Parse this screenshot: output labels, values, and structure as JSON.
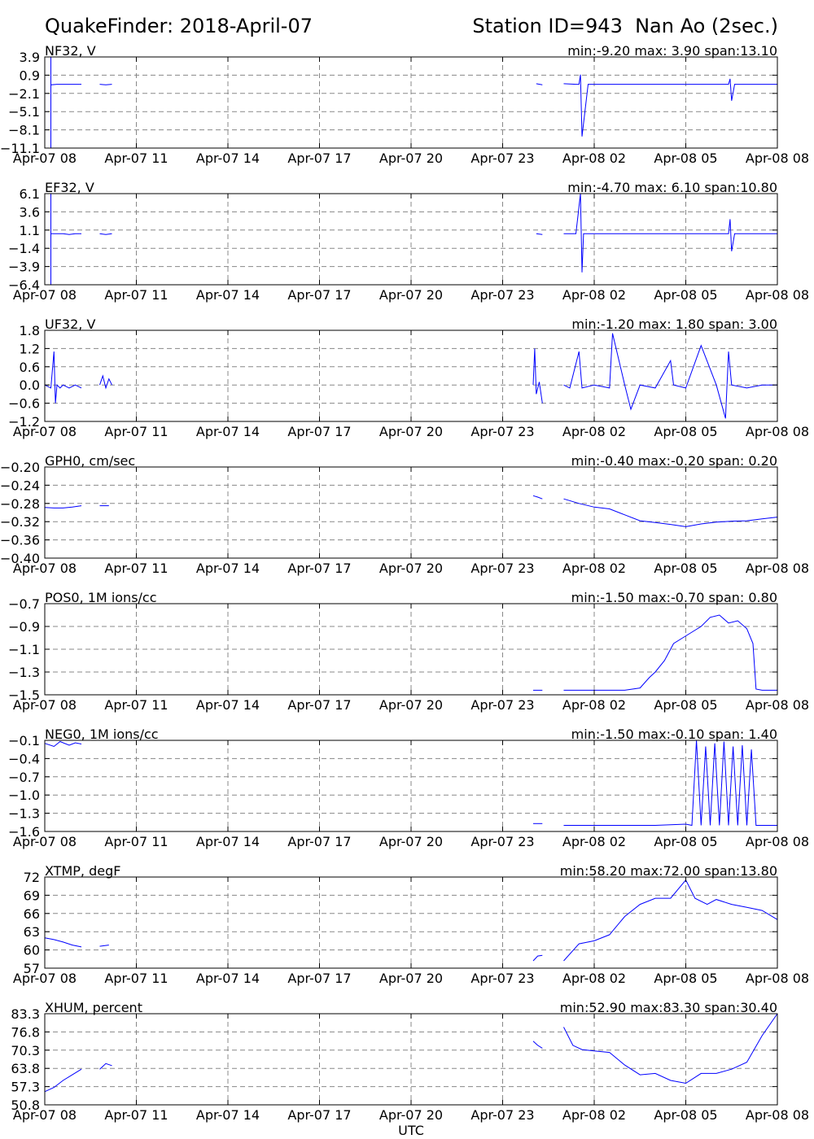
{
  "header": {
    "title_left": "QuakeFinder: 2018-April-07",
    "title_right": "Station ID=943  Nan Ao (2sec.)"
  },
  "xlabel": "UTC",
  "x_ticks": [
    "Apr-07 08",
    "Apr-07 11",
    "Apr-07 14",
    "Apr-07 17",
    "Apr-07 20",
    "Apr-07 23",
    "Apr-08 02",
    "Apr-08 05",
    "Apr-08 08"
  ],
  "chart_data": [
    {
      "type": "line",
      "label": "NF32, V",
      "stats": "min:-9.20 max: 3.90 span:13.10",
      "ylim": [
        -11.1,
        3.9
      ],
      "yticks": [
        "3.9",
        "0.9",
        "−2.1",
        "−5.1",
        "−8.1",
        "−11.1"
      ],
      "series": [
        {
          "x": [
            8.2,
            8.2,
            8.4,
            8.6,
            8.8,
            9.0,
            9.2
          ],
          "y": [
            -0.6,
            -0.7,
            -0.6,
            -0.6,
            -0.6,
            -0.6,
            -0.6
          ]
        },
        {
          "x": [
            8.2,
            8.2,
            8.2,
            8.2
          ],
          "y": [
            3.9,
            -11.1,
            3.9,
            -11.1
          ]
        },
        {
          "x": [
            9.8,
            10.0,
            10.2
          ],
          "y": [
            -0.6,
            -0.7,
            -0.6
          ]
        },
        {
          "x": [
            24.1,
            24.3
          ],
          "y": [
            -0.5,
            -0.7
          ]
        },
        {
          "x": [
            25.0,
            25.4,
            25.5,
            25.55,
            25.6,
            25.8,
            27.0,
            28.0,
            29.0,
            30.0,
            30.4,
            30.45,
            30.5,
            30.6,
            31.0,
            32.0
          ],
          "y": [
            -0.5,
            -0.6,
            -0.6,
            1.0,
            -9.2,
            -0.6,
            -0.6,
            -0.6,
            -0.6,
            -0.6,
            -0.6,
            0.3,
            -3.3,
            -0.6,
            -0.6,
            -0.6
          ]
        }
      ]
    },
    {
      "type": "line",
      "label": "EF32, V",
      "stats": "min:-4.70 max: 6.10 span:10.80",
      "ylim": [
        -6.4,
        6.1
      ],
      "yticks": [
        "6.1",
        "3.6",
        "1.1",
        "−1.4",
        "−3.9",
        "−6.4"
      ],
      "series": [
        {
          "x": [
            8.2,
            8.4,
            8.6,
            8.8,
            9.0,
            9.2
          ],
          "y": [
            0.6,
            0.6,
            0.6,
            0.5,
            0.6,
            0.6
          ]
        },
        {
          "x": [
            8.2,
            8.2,
            8.2,
            8.2
          ],
          "y": [
            6.1,
            -6.4,
            6.1,
            -6.4
          ]
        },
        {
          "x": [
            9.8,
            10.0,
            10.2
          ],
          "y": [
            0.6,
            0.5,
            0.6
          ]
        },
        {
          "x": [
            24.1,
            24.3
          ],
          "y": [
            0.6,
            0.5
          ]
        },
        {
          "x": [
            25.0,
            25.4,
            25.55,
            25.6,
            25.65,
            25.8,
            27.0,
            29.0,
            30.4,
            30.45,
            30.5,
            30.6,
            32.0
          ],
          "y": [
            0.6,
            0.6,
            6.1,
            -4.7,
            0.6,
            0.6,
            0.6,
            0.6,
            0.6,
            2.6,
            -1.8,
            0.6,
            0.6
          ]
        }
      ]
    },
    {
      "type": "line",
      "label": "UF32, V",
      "stats": "min:-1.20 max: 1.80 span: 3.00",
      "ylim": [
        -1.2,
        1.8
      ],
      "yticks": [
        "1.8",
        "1.2",
        "0.6",
        "0.0",
        "−0.6",
        "−1.2"
      ],
      "series": [
        {
          "x": [
            8.0,
            8.2,
            8.3,
            8.35,
            8.4,
            8.5,
            8.6,
            8.8,
            9.0,
            9.2
          ],
          "y": [
            0.0,
            -0.1,
            1.1,
            -0.6,
            0.0,
            -0.1,
            0.0,
            -0.1,
            0.0,
            -0.1
          ]
        },
        {
          "x": [
            9.8,
            9.9,
            10.0,
            10.1,
            10.2
          ],
          "y": [
            0.0,
            0.3,
            -0.1,
            0.2,
            0.0
          ]
        },
        {
          "x": [
            24.0,
            24.05,
            24.1,
            24.2,
            24.3
          ],
          "y": [
            0.0,
            1.2,
            -0.3,
            0.1,
            -0.6
          ]
        },
        {
          "x": [
            25.0,
            25.2,
            25.5,
            25.6,
            26.0,
            26.5,
            26.6,
            27.0,
            27.2,
            27.5,
            28.0,
            28.5,
            28.6,
            29.0,
            29.5,
            30.0,
            30.3,
            30.4,
            30.5,
            31.0,
            31.5,
            32.0
          ],
          "y": [
            0.0,
            -0.1,
            1.1,
            -0.1,
            0.0,
            -0.1,
            1.7,
            0.0,
            -0.8,
            0.0,
            -0.1,
            0.8,
            0.0,
            -0.1,
            1.3,
            0.0,
            -1.1,
            1.1,
            0.0,
            -0.1,
            0.0,
            0.0
          ]
        }
      ]
    },
    {
      "type": "line",
      "label": "GPH0, cm/sec",
      "stats": "min:-0.40 max:-0.20 span: 0.20",
      "ylim": [
        -0.4,
        -0.2
      ],
      "yticks": [
        "−0.20",
        "−0.24",
        "−0.28",
        "−0.32",
        "−0.36",
        "−0.40"
      ],
      "series": [
        {
          "x": [
            8.0,
            8.3,
            8.6,
            8.9,
            9.2
          ],
          "y": [
            -0.289,
            -0.29,
            -0.29,
            -0.288,
            -0.285
          ]
        },
        {
          "x": [
            9.8,
            10.1
          ],
          "y": [
            -0.285,
            -0.285
          ]
        },
        {
          "x": [
            24.0,
            24.15,
            24.3
          ],
          "y": [
            -0.263,
            -0.266,
            -0.27
          ]
        },
        {
          "x": [
            25.0,
            25.5,
            26.0,
            26.5,
            27.0,
            27.5,
            28.0,
            28.5,
            29.0,
            29.5,
            30.0,
            30.5,
            31.0,
            31.5,
            32.0
          ],
          "y": [
            -0.27,
            -0.28,
            -0.288,
            -0.292,
            -0.305,
            -0.318,
            -0.322,
            -0.326,
            -0.331,
            -0.325,
            -0.321,
            -0.319,
            -0.318,
            -0.314,
            -0.31
          ]
        }
      ]
    },
    {
      "type": "line",
      "label": "POS0, 1M ions/cc",
      "stats": "min:-1.50 max:-0.70 span: 0.80",
      "ylim": [
        -1.5,
        -0.7
      ],
      "yticks": [
        "−0.7",
        "−0.9",
        "−1.1",
        "−1.3",
        "−1.5"
      ],
      "series": [
        {
          "x": [
            24.0,
            24.3
          ],
          "y": [
            -1.46,
            -1.46
          ]
        },
        {
          "x": [
            25.0,
            26.0,
            27.0,
            27.5,
            27.8,
            28.0,
            28.3,
            28.6,
            28.9,
            29.2,
            29.5,
            29.8,
            30.1,
            30.4,
            30.7,
            31.0,
            31.2,
            31.3,
            31.5,
            32.0
          ],
          "y": [
            -1.46,
            -1.46,
            -1.46,
            -1.44,
            -1.35,
            -1.3,
            -1.2,
            -1.05,
            -1.0,
            -0.95,
            -0.9,
            -0.82,
            -0.8,
            -0.87,
            -0.85,
            -0.92,
            -1.05,
            -1.45,
            -1.46,
            -1.46
          ]
        }
      ]
    },
    {
      "type": "line",
      "label": "NEG0, 1M ions/cc",
      "stats": "min:-1.50 max:-0.10 span: 1.40",
      "ylim": [
        -1.6,
        -0.1
      ],
      "yticks": [
        "−0.1",
        "−0.4",
        "−0.7",
        "−1.0",
        "−1.3",
        "−1.6"
      ],
      "series": [
        {
          "x": [
            8.0,
            8.3,
            8.5,
            8.8,
            9.0,
            9.2
          ],
          "y": [
            -0.15,
            -0.2,
            -0.12,
            -0.18,
            -0.14,
            -0.16
          ]
        },
        {
          "x": [
            24.0,
            24.3
          ],
          "y": [
            -1.47,
            -1.47
          ]
        },
        {
          "x": [
            25.0,
            26.0,
            27.0,
            28.0,
            29.0,
            29.2,
            29.35,
            29.5,
            29.65,
            29.8,
            29.95,
            30.1,
            30.25,
            30.4,
            30.55,
            30.7,
            30.85,
            31.0,
            31.15,
            31.3,
            31.5,
            32.0
          ],
          "y": [
            -1.5,
            -1.5,
            -1.5,
            -1.5,
            -1.48,
            -1.5,
            -0.1,
            -1.5,
            -0.2,
            -1.5,
            -0.15,
            -1.5,
            -0.12,
            -1.5,
            -0.2,
            -1.5,
            -0.18,
            -1.5,
            -0.25,
            -1.5,
            -1.5,
            -1.5
          ]
        }
      ]
    },
    {
      "type": "line",
      "label": "XTMP, degF",
      "stats": "min:58.20 max:72.00 span:13.80",
      "ylim": [
        57,
        72
      ],
      "yticks": [
        "72",
        "69",
        "66",
        "63",
        "60",
        "57"
      ],
      "series": [
        {
          "x": [
            8.0,
            8.3,
            8.6,
            8.9,
            9.2
          ],
          "y": [
            62.0,
            61.7,
            61.3,
            60.8,
            60.5
          ]
        },
        {
          "x": [
            9.8,
            10.1
          ],
          "y": [
            60.6,
            60.8
          ]
        },
        {
          "x": [
            24.0,
            24.15,
            24.3
          ],
          "y": [
            58.2,
            59.0,
            59.1
          ]
        },
        {
          "x": [
            25.0,
            25.5,
            26.0,
            26.5,
            27.0,
            27.5,
            28.0,
            28.5,
            29.0,
            29.3,
            29.7,
            30.0,
            30.5,
            31.0,
            31.5,
            32.0
          ],
          "y": [
            58.2,
            61.0,
            61.5,
            62.5,
            65.5,
            67.5,
            68.5,
            68.5,
            71.5,
            68.5,
            67.5,
            68.3,
            67.5,
            67.0,
            66.5,
            65.0
          ]
        }
      ]
    },
    {
      "type": "line",
      "label": "XHUM, percent",
      "stats": "min:52.90 max:83.30 span:30.40",
      "ylim": [
        50.8,
        83.3
      ],
      "yticks": [
        "83.3",
        "76.8",
        "70.3",
        "63.8",
        "57.3",
        "50.8"
      ],
      "series": [
        {
          "x": [
            8.0,
            8.3,
            8.6,
            8.9,
            9.2
          ],
          "y": [
            55.5,
            57.0,
            59.5,
            61.5,
            63.5
          ]
        },
        {
          "x": [
            9.8,
            10.0,
            10.2
          ],
          "y": [
            63.5,
            65.5,
            64.8
          ]
        },
        {
          "x": [
            24.0,
            24.15,
            24.3
          ],
          "y": [
            73.5,
            72.0,
            71.0
          ]
        },
        {
          "x": [
            25.0,
            25.3,
            25.6,
            26.0,
            26.5,
            27.0,
            27.5,
            28.0,
            28.5,
            29.0,
            29.5,
            30.0,
            30.5,
            31.0,
            31.5,
            32.0
          ],
          "y": [
            78.5,
            72.0,
            70.5,
            70.0,
            69.5,
            65.0,
            61.5,
            62.0,
            59.5,
            58.5,
            62.0,
            62.0,
            63.5,
            66.0,
            75.5,
            83.3
          ]
        }
      ]
    }
  ]
}
